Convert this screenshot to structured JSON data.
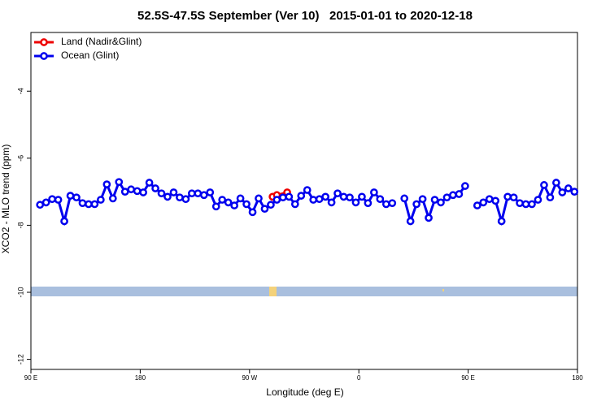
{
  "chart_data": {
    "type": "line",
    "title": "52.5S-47.5S September (Ver 10)   2015-01-01 to 2020-12-18",
    "x_label": "Longitude (deg E)",
    "y_label": "XCO2 - MLO trend (ppm)",
    "xlim": [
      90,
      540
    ],
    "xticks": [
      {
        "value": 90,
        "label": "90 E"
      },
      180,
      {
        "value": 270,
        "label": "90 W"
      },
      {
        "value": 360,
        "label": "0"
      },
      {
        "value": 450,
        "label": "90 E"
      },
      {
        "value": 540,
        "label": "180"
      }
    ],
    "ylim": [
      -12.3,
      -2.25
    ],
    "yticks": [
      -12,
      -10,
      -8,
      -6,
      -4
    ],
    "legend": "top-left",
    "series": [
      {
        "name": "Land (Nadir&Glint)",
        "color": "#ee0000",
        "x": [
          289,
          292.5,
          301
        ],
        "values": [
          -7.15,
          -7.1,
          -7.02
        ]
      },
      {
        "name": "Ocean (Glint)",
        "color": "#0000ee",
        "x": [
          97.5,
          102.5,
          107.5,
          112.5,
          117.5,
          122.5,
          127.5,
          132.5,
          137.5,
          142.5,
          147.5,
          152.5,
          157.5,
          162.5,
          167.5,
          172.5,
          177.5,
          182.5,
          187.5,
          192.5,
          197.5,
          202.5,
          207.5,
          212.5,
          217.5,
          222.5,
          227.5,
          232.5,
          237.5,
          242.5,
          247.5,
          252.5,
          257.5,
          262.5,
          267.5,
          272.5,
          277.5,
          282.5,
          287.5,
          292.5,
          297.5,
          302.5,
          307.5,
          312.5,
          317.5,
          322.5,
          327.5,
          332.5,
          337.5,
          342.5,
          347.5,
          352.5,
          357.5,
          362.5,
          367.5,
          372.5,
          377.5,
          382.5,
          387.5,
          392.5,
          397.5,
          402.5,
          407.5,
          412.5,
          417.5,
          422.5,
          427.5,
          432.5,
          437.5,
          442.5,
          447.5,
          452.5,
          457.5,
          462.5,
          467.5,
          472.5,
          477.5,
          482.5,
          487.5,
          492.5,
          497.5,
          502.5,
          507.5,
          512.5,
          517.5,
          522.5,
          527.5,
          532.5,
          537.5
        ],
        "values": [
          -7.39,
          -7.32,
          -7.22,
          -7.24,
          -7.88,
          -7.12,
          -7.17,
          -7.34,
          -7.37,
          -7.37,
          -7.24,
          -6.78,
          -7.2,
          -6.71,
          -7.0,
          -6.93,
          -6.98,
          -7.02,
          -6.73,
          -6.9,
          -7.05,
          -7.15,
          -7.02,
          -7.17,
          -7.22,
          -7.05,
          -7.05,
          -7.1,
          -7.02,
          -7.44,
          -7.24,
          -7.32,
          -7.41,
          -7.2,
          -7.37,
          -7.61,
          -7.2,
          -7.51,
          -7.39,
          -7.24,
          -7.17,
          -7.15,
          -7.37,
          -7.12,
          -6.95,
          -7.24,
          -7.22,
          -7.15,
          -7.32,
          -7.05,
          -7.15,
          -7.17,
          -7.32,
          -7.15,
          -7.34,
          -7.02,
          -7.22,
          -7.37,
          -7.34,
          null,
          -7.2,
          -7.88,
          -7.37,
          -7.22,
          -7.78,
          -7.24,
          -7.32,
          -7.17,
          -7.1,
          -7.07,
          -6.83,
          null,
          -7.41,
          -7.32,
          -7.22,
          -7.27,
          -7.88,
          -7.15,
          -7.17,
          -7.34,
          -7.37,
          -7.37,
          -7.24,
          -6.8,
          -7.17,
          -6.73,
          -7.02,
          -6.9,
          -7.0
        ]
      }
    ]
  }
}
